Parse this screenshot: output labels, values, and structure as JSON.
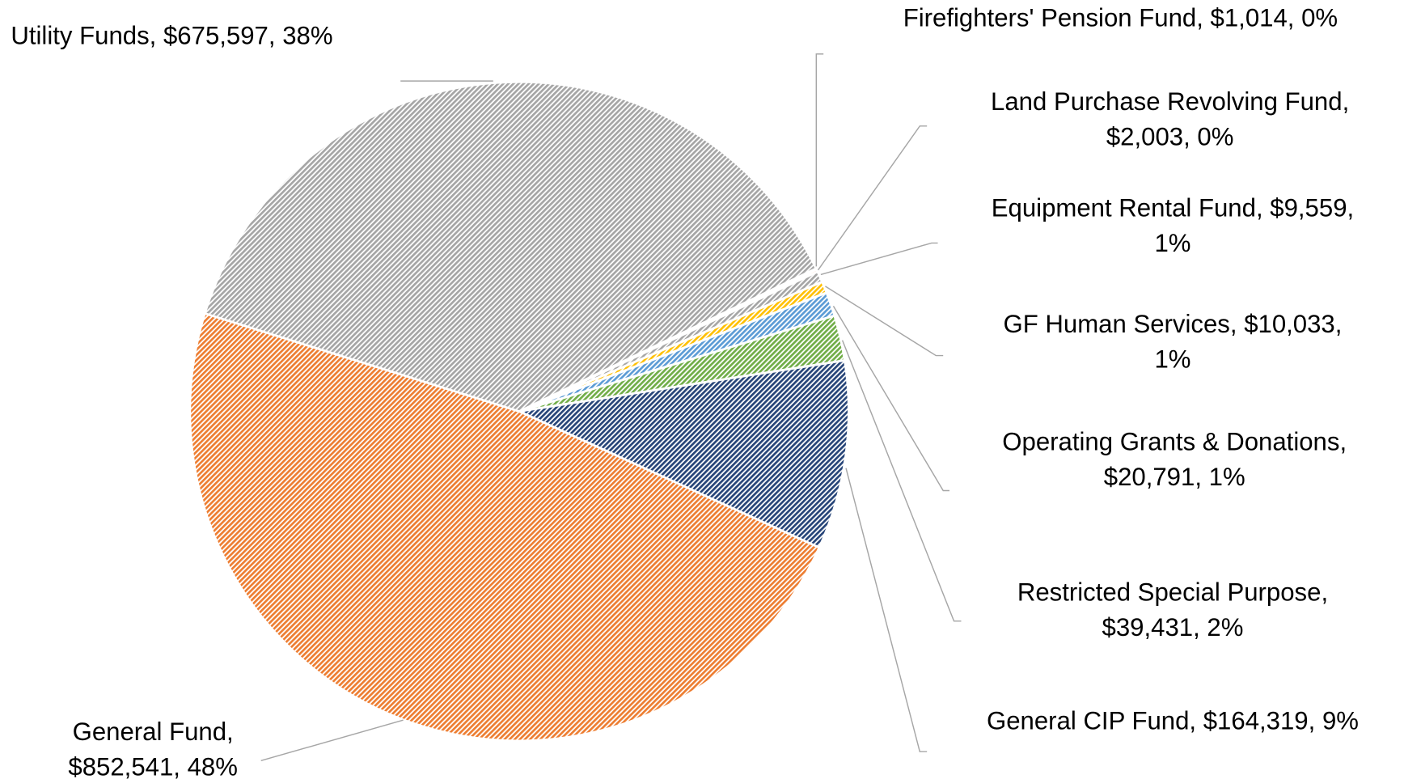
{
  "chart_data": {
    "type": "pie",
    "categories": [
      "Firefighters' Pension Fund",
      "Land Purchase Revolving Fund",
      "Equipment Rental Fund",
      "GF Human Services",
      "Operating Grants & Donations",
      "Restricted Special Purpose",
      "General CIP Fund",
      "General Fund",
      "Utility Funds"
    ],
    "values": [
      1014,
      2003,
      9559,
      10033,
      20791,
      39431,
      164319,
      852541,
      675597
    ],
    "value_labels": [
      "$1,014",
      "$2,003",
      "$9,559",
      "$10,033",
      "$20,791",
      "$39,431",
      "$164,319",
      "$852,541",
      "$675,597"
    ],
    "percents": [
      0,
      0,
      1,
      1,
      1,
      2,
      9,
      48,
      38
    ],
    "percent_labels": [
      "0%",
      "0%",
      "1%",
      "1%",
      "1%",
      "2%",
      "9%",
      "48%",
      "38%"
    ],
    "colors": [
      "#4472c4",
      "#ed7d31",
      "#a5a5a5",
      "#ffc000",
      "#5b9bd5",
      "#70ad47",
      "#264478",
      "#ed7d31",
      "#a5a5a5"
    ],
    "pattern": "hatched"
  }
}
